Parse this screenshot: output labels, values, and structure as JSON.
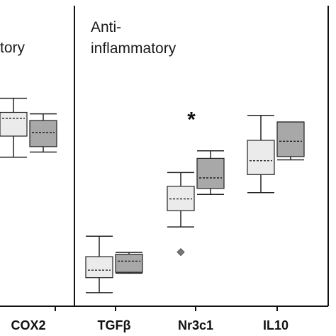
{
  "chart_data": {
    "type": "box",
    "title": "",
    "xlabel": "",
    "ylabel": "",
    "ylim": [
      0,
      100
    ],
    "grid": false,
    "legend": "none",
    "section_labels": [
      {
        "text": "tory",
        "line2": ""
      },
      {
        "text": "Anti-",
        "line2": "inflammatory"
      }
    ],
    "categories": [
      "COX2",
      "TGFβ",
      "Nr3c1",
      "IL10"
    ],
    "series": [
      {
        "color": "#ebebeb"
      },
      {
        "color": "#a8a8a8"
      }
    ],
    "boxes": [
      {
        "category": "COX2",
        "series": 0,
        "whisker_low": 49.6,
        "q1": 56.6,
        "mean": 62.5,
        "q3": 64.5,
        "whisker_high": 69.2
      },
      {
        "category": "COX2",
        "series": 1,
        "whisker_low": 51.3,
        "q1": 53.1,
        "mean": 57.8,
        "q3": 61.8,
        "whisker_high": 64.0
      },
      {
        "category": "TGFβ",
        "series": 0,
        "whisker_low": 4.5,
        "q1": 9.5,
        "mean": 12.0,
        "q3": 16.5,
        "whisker_high": 23.3
      },
      {
        "category": "TGFβ",
        "series": 1,
        "whisker_low": 11.0,
        "q1": 11.3,
        "mean": 15.0,
        "q3": 17.3,
        "whisker_high": 17.9
      },
      {
        "category": "Nr3c1",
        "series": 0,
        "whisker_low": 26.4,
        "q1": 31.8,
        "mean": 35.7,
        "q3": 39.9,
        "whisker_high": 44.5,
        "outliers": [
          18.0
        ]
      },
      {
        "category": "Nr3c1",
        "series": 1,
        "whisker_low": 37.2,
        "q1": 39.2,
        "mean": 42.7,
        "q3": 49.2,
        "whisker_high": 51.7
      },
      {
        "category": "IL10",
        "series": 0,
        "whisker_low": 37.8,
        "q1": 43.8,
        "mean": 48.4,
        "q3": 55.2,
        "whisker_high": 63.5
      },
      {
        "category": "IL10",
        "series": 1,
        "whisker_low": 48.7,
        "q1": 49.8,
        "mean": 54.9,
        "q3": 61.3,
        "whisker_high": 61.3
      }
    ],
    "annotations": [
      {
        "text": "*",
        "category": "Nr3c1",
        "series": 0.5,
        "y": 64.0
      }
    ]
  }
}
